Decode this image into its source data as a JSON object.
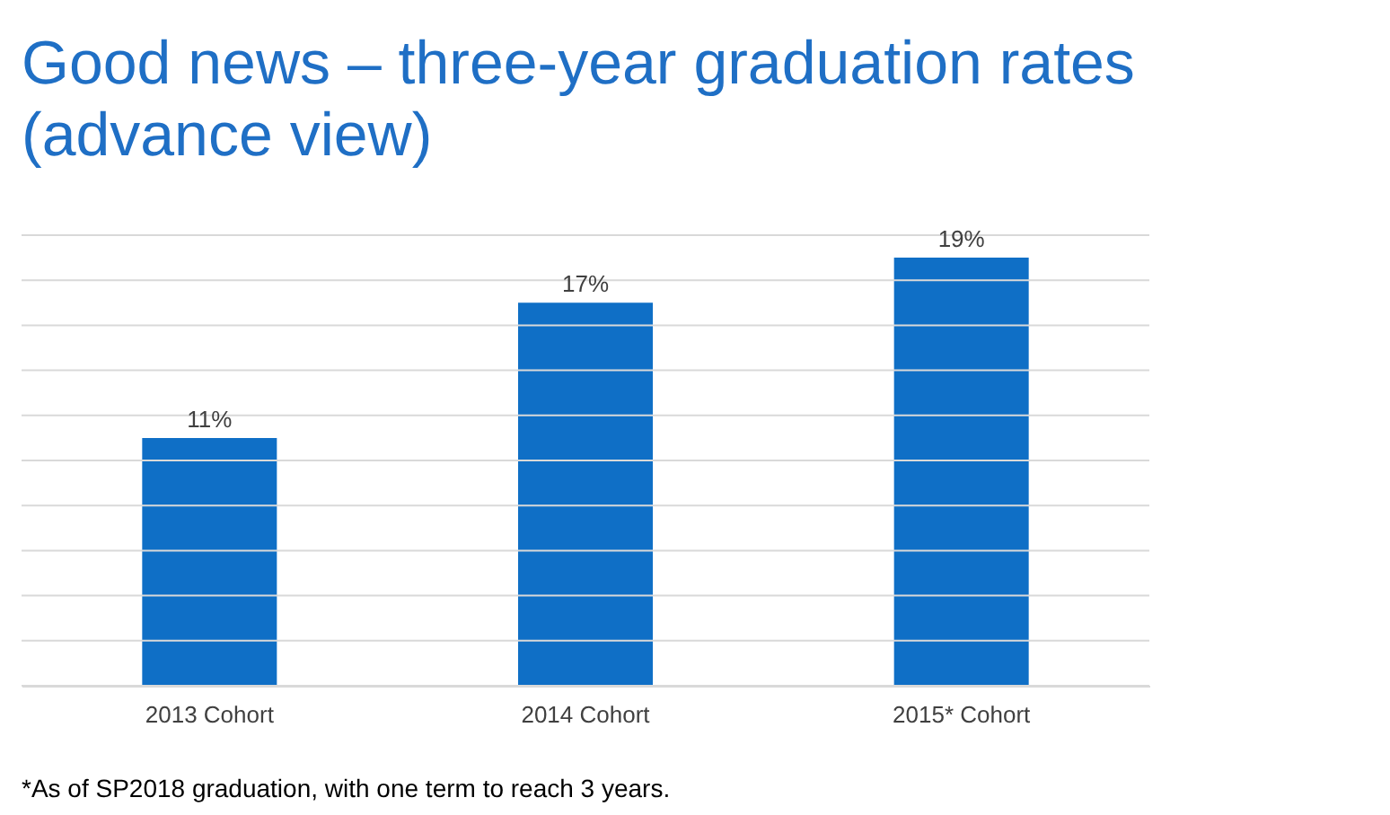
{
  "chart_data": {
    "type": "bar",
    "title": [
      "Good news – three-year graduation rates",
      "(advance view)"
    ],
    "categories": [
      "2013 Cohort",
      "2014 Cohort",
      "2015* Cohort"
    ],
    "values": [
      11,
      17,
      19
    ],
    "color": "#0f6fc6",
    "ylim": [
      0,
      20
    ],
    "yticks": [
      {
        "value": 0,
        "label": null
      },
      {
        "value": 2,
        "label": null
      },
      {
        "value": 4,
        "label": null
      },
      {
        "value": 6,
        "label": null
      },
      {
        "value": 8,
        "label": null
      },
      {
        "value": 10,
        "label": null
      },
      {
        "value": 12,
        "label": null
      },
      {
        "value": 14,
        "label": null
      },
      {
        "value": 16,
        "label": null
      },
      {
        "value": 18,
        "label": null
      },
      {
        "value": 20,
        "label": null
      }
    ],
    "value_labels": [
      "11%",
      "17%",
      "19%"
    ],
    "grid": "y",
    "tick_labels": "x",
    "annotations": [
      "*As of SP2018 graduation, with one term to reach 3 years."
    ]
  }
}
